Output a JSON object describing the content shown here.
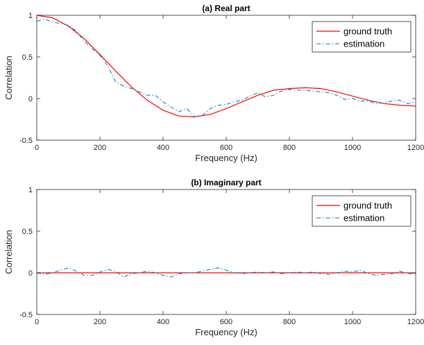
{
  "colors": {
    "ground_truth": "#ff0000",
    "estimation": "#0072bd",
    "axis": "#262626"
  },
  "chart_data": [
    {
      "type": "line",
      "title": "(a) Real part",
      "xlabel": "Frequency (Hz)",
      "ylabel": "Correlation",
      "xlim": [
        0,
        1200
      ],
      "ylim": [
        -0.5,
        1
      ],
      "xticks": [
        "0",
        "200",
        "400",
        "600",
        "800",
        "1000",
        "1200"
      ],
      "yticks": [
        "-0.5",
        "0",
        "0.5",
        "1"
      ],
      "legend": "top-right",
      "grid": false,
      "series": [
        {
          "name": "ground truth",
          "style": "solid",
          "x": [
            0,
            50,
            100,
            150,
            200,
            250,
            300,
            350,
            400,
            450,
            500,
            550,
            600,
            650,
            700,
            750,
            800,
            850,
            900,
            950,
            1000,
            1050,
            1100,
            1150,
            1200
          ],
          "values": [
            1.0,
            0.97,
            0.87,
            0.72,
            0.53,
            0.33,
            0.14,
            -0.02,
            -0.14,
            -0.21,
            -0.22,
            -0.19,
            -0.12,
            -0.04,
            0.04,
            0.1,
            0.12,
            0.13,
            0.12,
            0.08,
            0.03,
            -0.02,
            -0.06,
            -0.08,
            -0.09
          ]
        },
        {
          "name": "estimation",
          "style": "dashdot",
          "x": [
            0,
            25,
            50,
            75,
            100,
            125,
            150,
            175,
            200,
            225,
            250,
            275,
            300,
            325,
            350,
            375,
            400,
            425,
            450,
            475,
            500,
            525,
            550,
            575,
            600,
            625,
            650,
            675,
            700,
            725,
            750,
            775,
            800,
            825,
            850,
            875,
            900,
            925,
            950,
            975,
            1000,
            1025,
            1050,
            1075,
            1100,
            1125,
            1150,
            1175,
            1200
          ],
          "values": [
            0.93,
            0.95,
            0.92,
            0.9,
            0.88,
            0.81,
            0.69,
            0.6,
            0.52,
            0.39,
            0.2,
            0.15,
            0.12,
            0.08,
            0.04,
            0.04,
            -0.04,
            -0.1,
            -0.16,
            -0.12,
            -0.22,
            -0.2,
            -0.12,
            -0.08,
            -0.07,
            -0.04,
            -0.02,
            0.03,
            0.07,
            0.02,
            0.04,
            0.09,
            0.11,
            0.1,
            0.1,
            0.09,
            0.08,
            0.07,
            0.04,
            -0.01,
            0.0,
            -0.03,
            -0.03,
            -0.06,
            -0.05,
            -0.03,
            -0.02,
            -0.06,
            -0.04
          ]
        }
      ]
    },
    {
      "type": "line",
      "title": "(b) Imaginary part",
      "xlabel": "Frequency (Hz)",
      "ylabel": "Correlation",
      "xlim": [
        0,
        1200
      ],
      "ylim": [
        -0.5,
        1
      ],
      "xticks": [
        "0",
        "200",
        "400",
        "600",
        "800",
        "1000",
        "1200"
      ],
      "yticks": [
        "-0.5",
        "0",
        "0.5",
        "1"
      ],
      "legend": "top-right",
      "grid": false,
      "series": [
        {
          "name": "ground truth",
          "style": "solid",
          "x": [
            0,
            1200
          ],
          "values": [
            0,
            0
          ]
        },
        {
          "name": "estimation",
          "style": "dashdot",
          "x": [
            0,
            25,
            50,
            75,
            100,
            125,
            150,
            175,
            200,
            225,
            250,
            275,
            300,
            325,
            350,
            375,
            400,
            425,
            450,
            475,
            500,
            525,
            550,
            575,
            600,
            625,
            650,
            675,
            700,
            725,
            750,
            775,
            800,
            825,
            850,
            875,
            900,
            925,
            950,
            975,
            1000,
            1025,
            1050,
            1075,
            1100,
            1125,
            1150,
            1175,
            1200
          ],
          "values": [
            0.0,
            -0.02,
            0.0,
            0.03,
            0.06,
            0.02,
            -0.03,
            -0.03,
            0.01,
            0.04,
            0.02,
            -0.05,
            -0.01,
            0.0,
            0.02,
            0.0,
            -0.03,
            -0.05,
            -0.01,
            0.0,
            0.0,
            0.02,
            0.04,
            0.06,
            0.03,
            0.0,
            -0.01,
            0.0,
            0.01,
            0.0,
            0.01,
            -0.01,
            0.0,
            0.01,
            0.0,
            0.01,
            -0.01,
            -0.02,
            0.0,
            0.02,
            0.01,
            0.03,
            -0.01,
            -0.03,
            -0.02,
            -0.01,
            0.02,
            -0.01,
            -0.01
          ]
        }
      ]
    }
  ]
}
